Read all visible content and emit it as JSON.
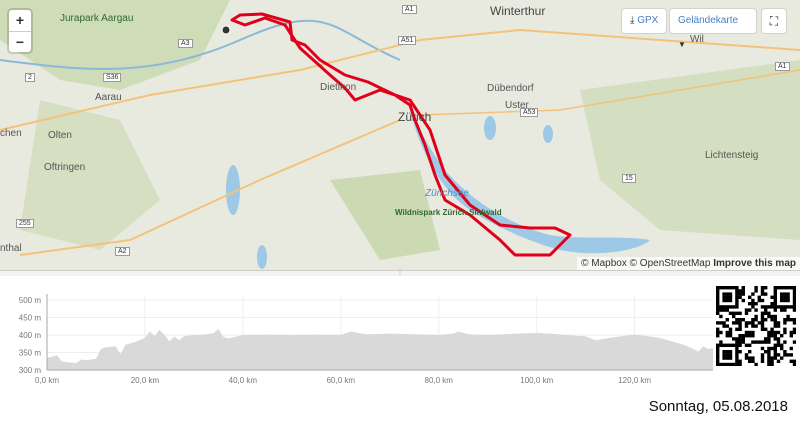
{
  "map": {
    "places": [
      {
        "name": "Winterthur",
        "cls": "big"
      },
      {
        "name": "Jurapark Aargau",
        "cls": ""
      },
      {
        "name": "Aarau",
        "cls": ""
      },
      {
        "name": "Olten",
        "cls": ""
      },
      {
        "name": "Oftringen",
        "cls": ""
      },
      {
        "name": "Dietikon",
        "cls": ""
      },
      {
        "name": "Zürich",
        "cls": "big"
      },
      {
        "name": "Dübendorf",
        "cls": ""
      },
      {
        "name": "Uster",
        "cls": ""
      },
      {
        "name": "Wil",
        "cls": ""
      },
      {
        "name": "Lichtensteig",
        "cls": ""
      },
      {
        "name": "nthal",
        "cls": ""
      },
      {
        "name": "chen",
        "cls": ""
      }
    ],
    "water_label": "Zürichsee",
    "park_label": "Wildnispark Zürich Sihlwald",
    "roads": [
      "A1",
      "A3",
      "A51",
      "A53",
      "S36",
      "2",
      "15",
      "255",
      "A2",
      "A3",
      "A1"
    ],
    "zoom_in": "+",
    "zoom_out": "−",
    "gpx_label": "GPX",
    "gpx_icon": "download-icon",
    "layer_label": "Geländekarte",
    "fullscreen_icon": "fullscreen-icon",
    "attribution": {
      "mapbox": "© Mapbox",
      "osm": "© OpenStreetMap",
      "improve": "Improve this map"
    },
    "route_color": "#e0001b"
  },
  "chart_data": {
    "type": "area",
    "xlabel": "",
    "ylabel": "",
    "xlim": [
      0,
      136
    ],
    "ylim": [
      300,
      500
    ],
    "x_ticks": [
      "0,0 km",
      "20,0 km",
      "40,0 km",
      "60,0 km",
      "80,0 km",
      "100,0 km",
      "120,0 km"
    ],
    "y_ticks": [
      "300 m",
      "350 m",
      "400 m",
      "450 m",
      "500 m"
    ],
    "grid": true,
    "fill_color": "#d9d9d9",
    "x": [
      0,
      1,
      2,
      3,
      4,
      6,
      7,
      8,
      10,
      11,
      12,
      14,
      15,
      16,
      18,
      20,
      21,
      22,
      23,
      24,
      25,
      26,
      27,
      28,
      30,
      32,
      34,
      35,
      36,
      37,
      40,
      45,
      50,
      55,
      60,
      62,
      65,
      70,
      75,
      80,
      83,
      84,
      86,
      90,
      95,
      100,
      103,
      106,
      110,
      112,
      115,
      118,
      120,
      122,
      125,
      128,
      130,
      132,
      133,
      134,
      135,
      136
    ],
    "y": [
      335,
      338,
      342,
      325,
      322,
      320,
      330,
      328,
      332,
      360,
      365,
      368,
      345,
      372,
      380,
      392,
      410,
      397,
      415,
      400,
      382,
      395,
      385,
      397,
      400,
      401,
      405,
      418,
      395,
      390,
      400,
      401,
      400,
      401,
      400,
      410,
      402,
      404,
      402,
      400,
      404,
      410,
      402,
      400,
      403,
      406,
      404,
      400,
      396,
      385,
      392,
      398,
      401,
      398,
      392,
      380,
      372,
      360,
      352,
      368,
      360,
      362
    ]
  },
  "date": "Sonntag, 05.08.2018"
}
